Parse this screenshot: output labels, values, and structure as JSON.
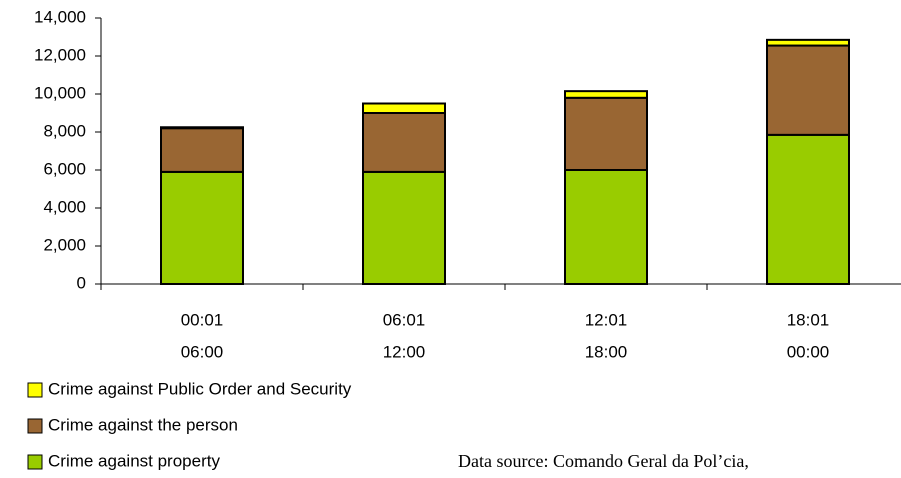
{
  "chart_data": {
    "type": "stacked_bar",
    "categories": [
      [
        "00:01",
        "06:00"
      ],
      [
        "06:01",
        "12:00"
      ],
      [
        "12:01",
        "18:00"
      ],
      [
        "18:01",
        "00:00"
      ]
    ],
    "series": [
      {
        "name": "Crime against property",
        "color": "#99cc00",
        "values": [
          5900,
          5900,
          6000,
          7850
        ]
      },
      {
        "name": "Crime against the person",
        "color": "#996633",
        "values": [
          2300,
          3100,
          3800,
          4700
        ]
      },
      {
        "name": "Crime against Public Order and Security",
        "color": "#ffff00",
        "values": [
          50,
          500,
          350,
          300
        ]
      }
    ],
    "ylim": [
      0,
      14000
    ],
    "yticks": [
      0,
      {
        "value": 2000,
        "label": "2,000"
      },
      {
        "value": 4000,
        "label": "4,000"
      },
      {
        "value": 6000,
        "label": "6,000"
      },
      {
        "value": 8000,
        "label": "8,000"
      },
      {
        "value": 10000,
        "label": "10,000"
      },
      {
        "value": 12000,
        "label": "12,000"
      },
      {
        "value": 14000,
        "label": "14,000"
      }
    ],
    "legend_position": "bottom-left",
    "source": "Data source: Comando Geral da Pol’cia,"
  }
}
